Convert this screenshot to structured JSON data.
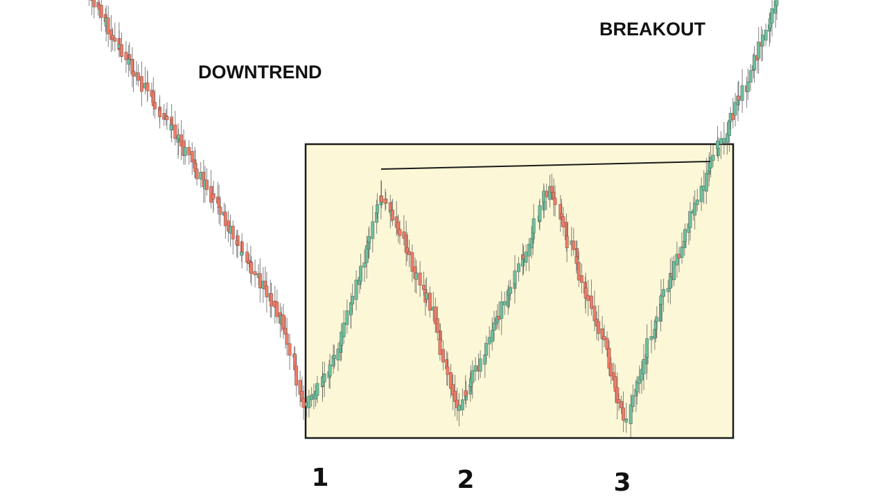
{
  "chart_data": {
    "type": "candlestick",
    "title": "",
    "xlabel": "",
    "ylabel": "",
    "grid": false,
    "colors": {
      "up": "#6dbf9c",
      "down": "#ef7b66",
      "wick": "#555555",
      "zone_fill": "#fcf8d7",
      "zone_stroke": "#1a1a1a",
      "resistance": "#1a1a1a"
    },
    "annotations": [
      {
        "id": "downtrend",
        "text": "DOWNTREND"
      },
      {
        "id": "breakout",
        "text": "BREAKOUT"
      }
    ],
    "bottoms": [
      {
        "label": "1",
        "x": 440,
        "y": 585
      },
      {
        "label": "2",
        "x": 662,
        "y": 592
      },
      {
        "label": "3",
        "x": 902,
        "y": 608
      }
    ],
    "peaks": [
      {
        "x": 550,
        "y": 278
      },
      {
        "x": 792,
        "y": 268
      }
    ],
    "path": [
      {
        "x": 125,
        "y": -20
      },
      {
        "x": 180,
        "y": 80
      },
      {
        "x": 240,
        "y": 170
      },
      {
        "x": 300,
        "y": 270
      },
      {
        "x": 360,
        "y": 380
      },
      {
        "x": 410,
        "y": 470
      },
      {
        "x": 440,
        "y": 585
      },
      {
        "x": 480,
        "y": 520
      },
      {
        "x": 520,
        "y": 390
      },
      {
        "x": 550,
        "y": 278
      },
      {
        "x": 580,
        "y": 340
      },
      {
        "x": 620,
        "y": 440
      },
      {
        "x": 662,
        "y": 592
      },
      {
        "x": 700,
        "y": 500
      },
      {
        "x": 750,
        "y": 380
      },
      {
        "x": 792,
        "y": 268
      },
      {
        "x": 830,
        "y": 370
      },
      {
        "x": 870,
        "y": 490
      },
      {
        "x": 902,
        "y": 608
      },
      {
        "x": 940,
        "y": 480
      },
      {
        "x": 980,
        "y": 360
      },
      {
        "x": 1020,
        "y": 250
      },
      {
        "x": 1040,
        "y": 205
      },
      {
        "x": 1080,
        "y": 110
      },
      {
        "x": 1120,
        "y": 0
      },
      {
        "x": 1130,
        "y": -20
      }
    ],
    "consolidation_zone": {
      "x0": 441,
      "x1": 1058,
      "y0": 208,
      "y1": 632
    },
    "resistance_line": {
      "x0": 550,
      "y0": 244,
      "x1": 1025,
      "y1": 233
    }
  }
}
